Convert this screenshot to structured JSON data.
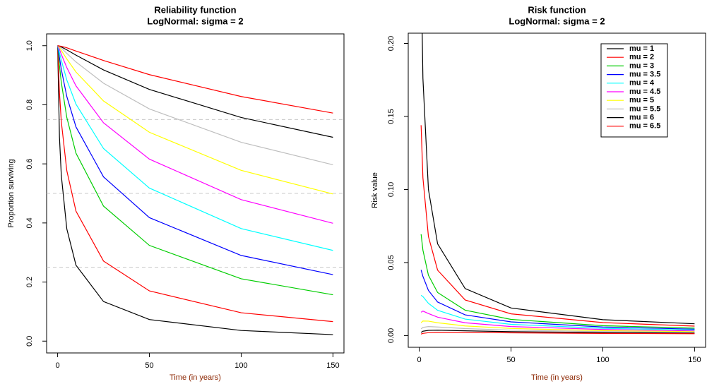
{
  "chart_data": [
    {
      "type": "line",
      "title": "Reliability function",
      "subtitle": "LogNormal: sigma = 2",
      "x_label": "Time (in years)",
      "y_label": "Proportion surviving",
      "x": [
        0,
        1,
        2,
        5,
        10,
        25,
        50,
        100,
        150
      ],
      "xlim": [
        -6,
        156
      ],
      "xticks": [
        0,
        50,
        100,
        150
      ],
      "ylim": [
        -0.04,
        1.04
      ],
      "yticks": [
        {
          "value": 0,
          "label": "0.0"
        },
        0.2,
        0.4,
        0.6,
        0.8,
        {
          "value": 1,
          "label": "1.0"
        }
      ],
      "hlines": [
        0.25,
        0.5,
        0.75
      ],
      "series": [
        {
          "color": "#000000",
          "values": [
            1,
            0.691,
            0.561,
            0.38,
            0.257,
            0.134,
            0.073,
            0.036,
            0.022
          ]
        },
        {
          "color": "#ff0000",
          "values": [
            1,
            0.841,
            0.743,
            0.577,
            0.44,
            0.271,
            0.17,
            0.096,
            0.066
          ]
        },
        {
          "color": "#00cd00",
          "values": [
            1,
            0.933,
            0.876,
            0.757,
            0.636,
            0.457,
            0.324,
            0.211,
            0.157
          ]
        },
        {
          "color": "#0000ff",
          "values": [
            1,
            0.96,
            0.92,
            0.828,
            0.725,
            0.556,
            0.418,
            0.29,
            0.225
          ]
        },
        {
          "color": "#00ffff",
          "values": [
            1,
            0.977,
            0.951,
            0.884,
            0.802,
            0.652,
            0.518,
            0.381,
            0.307
          ]
        },
        {
          "color": "#ff00ff",
          "values": [
            1,
            0.988,
            0.971,
            0.926,
            0.864,
            0.739,
            0.616,
            0.479,
            0.399
          ]
        },
        {
          "color": "#ffff00",
          "values": [
            1,
            0.994,
            0.984,
            0.955,
            0.911,
            0.813,
            0.707,
            0.578,
            0.498
          ]
        },
        {
          "color": "#bebebe",
          "values": [
            1,
            0.997,
            0.992,
            0.974,
            0.945,
            0.873,
            0.786,
            0.673,
            0.597
          ]
        },
        {
          "color": "#000000",
          "values": [
            1,
            0.999,
            0.996,
            0.986,
            0.968,
            0.918,
            0.852,
            0.757,
            0.69
          ]
        },
        {
          "color": "#ff0000",
          "values": [
            1,
            0.999,
            0.998,
            0.993,
            0.982,
            0.95,
            0.902,
            0.828,
            0.772
          ]
        }
      ]
    },
    {
      "type": "line",
      "title": "Risk function",
      "subtitle": "LogNormal: sigma = 2",
      "x_label": "Time (in years)",
      "y_label": "Risk value",
      "x": [
        1,
        2,
        5,
        10,
        25,
        50,
        100,
        150
      ],
      "xlim": [
        -6,
        156
      ],
      "xticks": [
        0,
        50,
        100,
        150
      ],
      "ylim": [
        -0.008,
        0.207
      ],
      "yticks": [
        {
          "value": 0,
          "label": "0.00"
        },
        0.05,
        {
          "value": 0.1,
          "label": "0.10"
        },
        0.15,
        {
          "value": 0.2,
          "label": "0.20"
        }
      ],
      "legend": "topright",
      "series": [
        {
          "name": "mu = 1",
          "color": "#000000",
          "values": [
            0.255,
            0.176,
            0.1,
            0.0628,
            0.0322,
            0.0189,
            0.0109,
            0.0081
          ]
        },
        {
          "name": "mu = 2",
          "color": "#ff0000",
          "values": [
            0.144,
            0.108,
            0.0678,
            0.0448,
            0.0244,
            0.0149,
            0.0089,
            0.0065
          ]
        },
        {
          "name": "mu = 3",
          "color": "#00cd00",
          "values": [
            0.0694,
            0.0585,
            0.0413,
            0.0295,
            0.0174,
            0.0111,
            0.0068,
            0.0051
          ]
        },
        {
          "name": "mu = 3.5",
          "color": "#0000ff",
          "values": [
            0.045,
            0.0405,
            0.0309,
            0.023,
            0.0142,
            0.0094,
            0.0059,
            0.0044
          ]
        },
        {
          "name": "mu = 4",
          "color": "#00ffff",
          "values": [
            0.0276,
            0.0267,
            0.0221,
            0.0173,
            0.0113,
            0.0077,
            0.005,
            0.0038
          ]
        },
        {
          "name": "mu = 4.5",
          "color": "#ff00ff",
          "values": [
            0.016,
            0.0168,
            0.0151,
            0.0126,
            0.0088,
            0.0062,
            0.0042,
            0.0032
          ]
        },
        {
          "name": "mu = 5",
          "color": "#ffff00",
          "values": [
            0.0088,
            0.01,
            0.0099,
            0.0088,
            0.0066,
            0.0049,
            0.0034,
            0.0027
          ]
        },
        {
          "name": "mu = 5.5",
          "color": "#bebebe",
          "values": [
            0.0046,
            0.0056,
            0.0062,
            0.0059,
            0.0048,
            0.0037,
            0.0027,
            0.0022
          ]
        },
        {
          "name": "mu = 6",
          "color": "#000000",
          "values": [
            0.0022,
            0.003,
            0.0036,
            0.0037,
            0.0033,
            0.0027,
            0.0021,
            0.0017
          ]
        },
        {
          "name": "mu = 6.5",
          "color": "#ff0000",
          "values": [
            0.001,
            0.0015,
            0.002,
            0.0022,
            0.0022,
            0.0019,
            0.0015,
            0.0013
          ]
        }
      ]
    }
  ]
}
